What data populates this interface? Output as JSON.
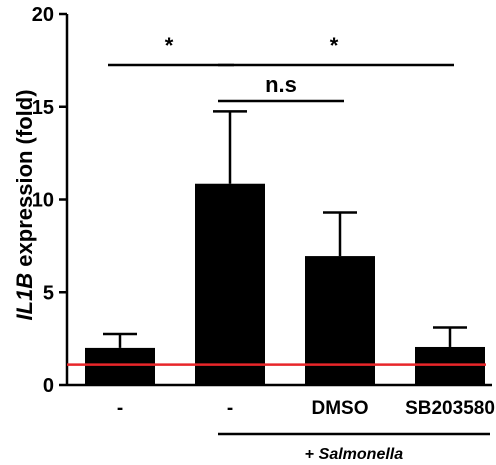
{
  "chart_data": {
    "type": "bar",
    "categories": [
      "-",
      "-",
      "DMSO",
      "SB203580"
    ],
    "values": [
      2.0,
      10.85,
      6.95,
      2.05
    ],
    "errors": [
      0.75,
      3.9,
      2.35,
      1.05
    ],
    "ylabel_italic": "IL1B",
    "ylabel_rest": " expression (fold)",
    "ylim": [
      0,
      20
    ],
    "yticks": [
      0,
      5,
      10,
      15,
      20
    ],
    "reference_line": {
      "value": 1.1,
      "color": "#e8262a"
    },
    "bar_color": "#000000",
    "grid": false,
    "significance": [
      {
        "from": 0,
        "to": 1,
        "label": "*"
      },
      {
        "from": 1,
        "to": 3,
        "label": "*"
      },
      {
        "from": 1,
        "to": 2,
        "label": "n.s"
      }
    ],
    "group": {
      "from": 1,
      "to": 3,
      "label_prefix": "+ ",
      "label_italic": "Salmonella"
    }
  }
}
